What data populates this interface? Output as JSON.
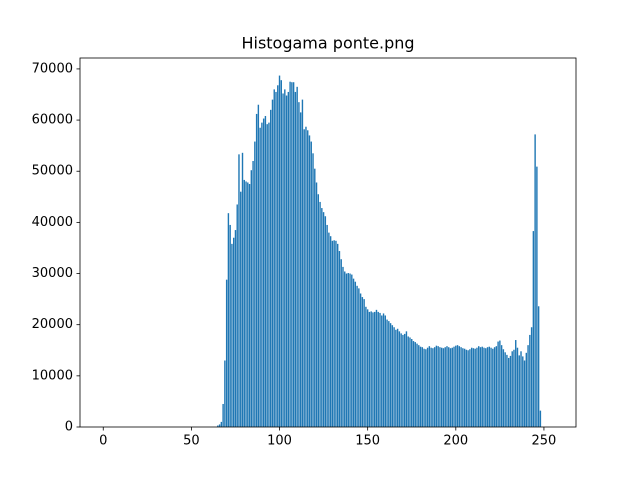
{
  "chart_data": {
    "type": "bar",
    "title": "Histogama ponte.png",
    "color": "#1f77b4",
    "x": [
      0,
      1,
      2,
      3,
      4,
      5,
      6,
      7,
      8,
      9,
      10,
      11,
      12,
      13,
      14,
      15,
      16,
      17,
      18,
      19,
      20,
      21,
      22,
      23,
      24,
      25,
      26,
      27,
      28,
      29,
      30,
      31,
      32,
      33,
      34,
      35,
      36,
      37,
      38,
      39,
      40,
      41,
      42,
      43,
      44,
      45,
      46,
      47,
      48,
      49,
      50,
      51,
      52,
      53,
      54,
      55,
      56,
      57,
      58,
      59,
      60,
      61,
      62,
      63,
      64,
      65,
      66,
      67,
      68,
      69,
      70,
      71,
      72,
      73,
      74,
      75,
      76,
      77,
      78,
      79,
      80,
      81,
      82,
      83,
      84,
      85,
      86,
      87,
      88,
      89,
      90,
      91,
      92,
      93,
      94,
      95,
      96,
      97,
      98,
      99,
      100,
      101,
      102,
      103,
      104,
      105,
      106,
      107,
      108,
      109,
      110,
      111,
      112,
      113,
      114,
      115,
      116,
      117,
      118,
      119,
      120,
      121,
      122,
      123,
      124,
      125,
      126,
      127,
      128,
      129,
      130,
      131,
      132,
      133,
      134,
      135,
      136,
      137,
      138,
      139,
      140,
      141,
      142,
      143,
      144,
      145,
      146,
      147,
      148,
      149,
      150,
      151,
      152,
      153,
      154,
      155,
      156,
      157,
      158,
      159,
      160,
      161,
      162,
      163,
      164,
      165,
      166,
      167,
      168,
      169,
      170,
      171,
      172,
      173,
      174,
      175,
      176,
      177,
      178,
      179,
      180,
      181,
      182,
      183,
      184,
      185,
      186,
      187,
      188,
      189,
      190,
      191,
      192,
      193,
      194,
      195,
      196,
      197,
      198,
      199,
      200,
      201,
      202,
      203,
      204,
      205,
      206,
      207,
      208,
      209,
      210,
      211,
      212,
      213,
      214,
      215,
      216,
      217,
      218,
      219,
      220,
      221,
      222,
      223,
      224,
      225,
      226,
      227,
      228,
      229,
      230,
      231,
      232,
      233,
      234,
      235,
      236,
      237,
      238,
      239,
      240,
      241,
      242,
      243,
      244,
      245,
      246,
      247,
      248,
      249,
      250,
      251,
      252,
      253,
      254,
      255
    ],
    "values": [
      0,
      0,
      0,
      0,
      0,
      0,
      0,
      0,
      0,
      0,
      0,
      0,
      0,
      0,
      0,
      0,
      0,
      0,
      0,
      0,
      0,
      0,
      0,
      0,
      0,
      0,
      0,
      0,
      0,
      0,
      0,
      0,
      0,
      0,
      0,
      0,
      0,
      0,
      0,
      0,
      0,
      0,
      0,
      0,
      0,
      0,
      0,
      0,
      0,
      0,
      0,
      0,
      0,
      0,
      0,
      0,
      0,
      0,
      0,
      0,
      0,
      0,
      0,
      0,
      0,
      300,
      500,
      1000,
      4500,
      13000,
      28800,
      41800,
      39500,
      35800,
      37000,
      38500,
      43500,
      53300,
      46000,
      53600,
      48300,
      48000,
      47800,
      47500,
      50200,
      52000,
      55800,
      61200,
      63000,
      58500,
      59500,
      60300,
      60800,
      59200,
      59500,
      62000,
      64000,
      66000,
      65500,
      66800,
      68700,
      67800,
      65200,
      66000,
      64800,
      65500,
      67500,
      67400,
      67400,
      65500,
      66500,
      63500,
      61500,
      64000,
      58200,
      58700,
      58000,
      57000,
      55800,
      53500,
      50500,
      47800,
      45500,
      44000,
      42800,
      42000,
      41200,
      39500,
      38000,
      37300,
      36400,
      36500,
      36400,
      35800,
      34400,
      32800,
      31300,
      30400,
      30000,
      30100,
      30000,
      29800,
      29000,
      28400,
      27600,
      27100,
      26100,
      25400,
      25000,
      23500,
      23000,
      22500,
      22600,
      22400,
      22500,
      22900,
      22500,
      22300,
      21800,
      22200,
      21800,
      21000,
      20700,
      20300,
      19900,
      19500,
      19000,
      19200,
      18700,
      18300,
      18000,
      18200,
      18700,
      17700,
      17500,
      17200,
      16800,
      16600,
      16300,
      16000,
      15700,
      15600,
      15300,
      15200,
      15500,
      15800,
      15500,
      15400,
      15600,
      15900,
      15800,
      15600,
      15500,
      15400,
      15600,
      15800,
      15600,
      15400,
      15500,
      15700,
      15900,
      16000,
      15800,
      15600,
      15400,
      15300,
      15100,
      15000,
      15200,
      15500,
      15400,
      15300,
      15500,
      15800,
      15600,
      15700,
      15500,
      15400,
      15600,
      15700,
      15500,
      15300,
      15600,
      15800,
      16700,
      16900,
      16000,
      15200,
      14600,
      14100,
      13500,
      13900,
      14800,
      15100,
      17000,
      15500,
      14000,
      14800,
      13800,
      13000,
      14500,
      16000,
      18000,
      19500,
      38300,
      57200,
      50900,
      23600,
      3200,
      0,
      0,
      0,
      0,
      0,
      0,
      0
    ],
    "xlim": [
      -13.19,
      268.19
    ],
    "ylim": [
      0,
      72135
    ],
    "xticks": [
      0,
      50,
      100,
      150,
      200,
      250
    ],
    "yticks": [
      0,
      10000,
      20000,
      30000,
      40000,
      50000,
      60000,
      70000
    ]
  }
}
